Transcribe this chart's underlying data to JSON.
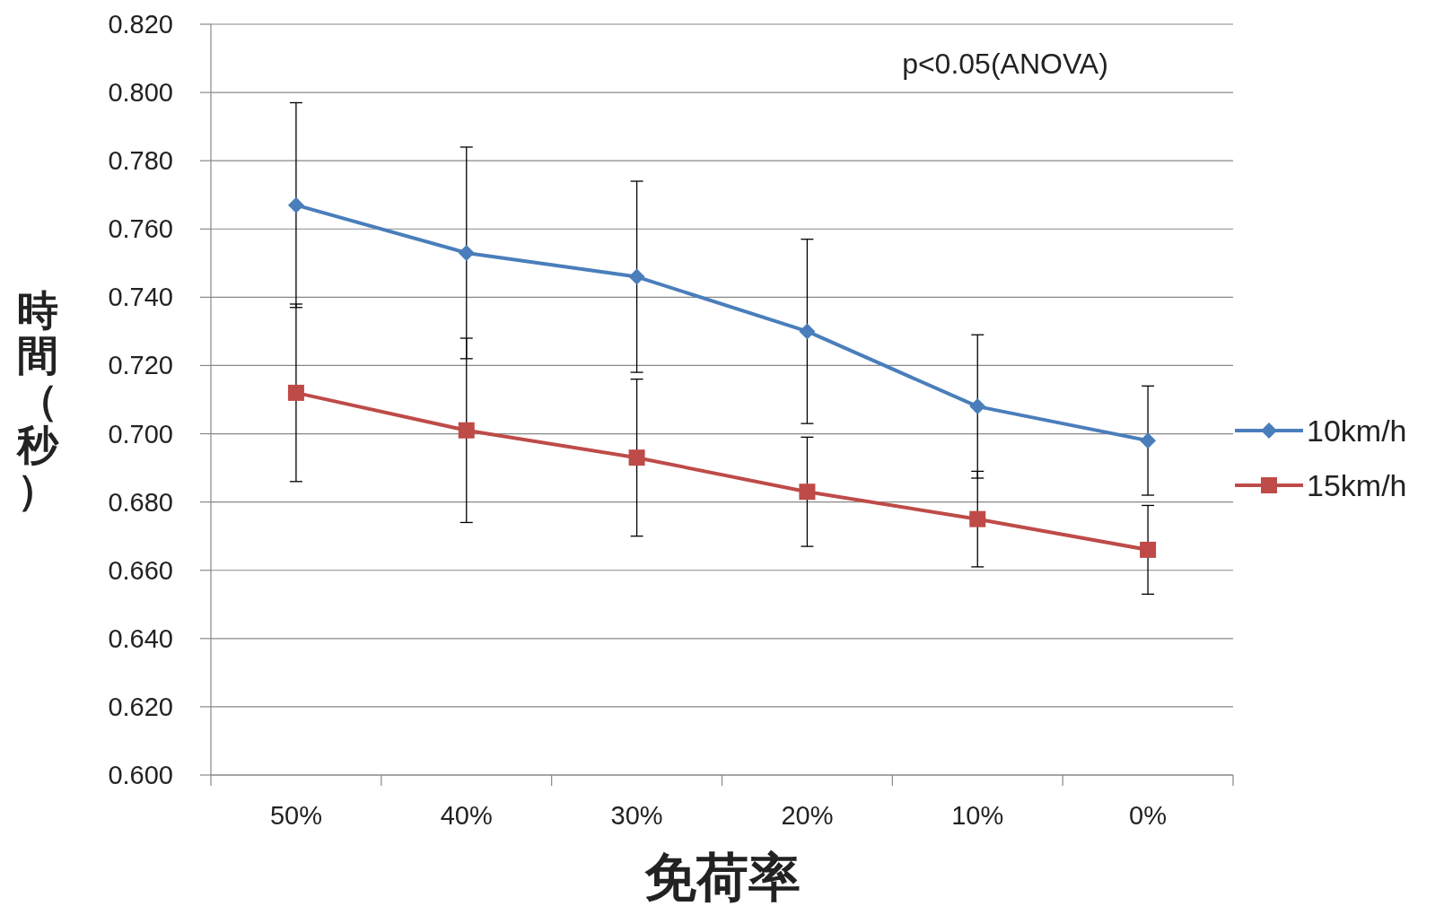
{
  "chart_data": {
    "type": "line",
    "xlabel": "免荷率",
    "ylabel": "時間（秒）",
    "categories": [
      "50%",
      "40%",
      "30%",
      "20%",
      "10%",
      "0%"
    ],
    "series": [
      {
        "name": "10km/h",
        "color": "#4a7ebb",
        "marker": "diamond",
        "values": [
          0.767,
          0.753,
          0.746,
          0.73,
          0.708,
          0.698
        ],
        "errors": [
          0.03,
          0.031,
          0.028,
          0.027,
          0.021,
          0.016
        ]
      },
      {
        "name": "15km/h",
        "color": "#be4b48",
        "marker": "square",
        "values": [
          0.712,
          0.701,
          0.693,
          0.683,
          0.675,
          0.666
        ],
        "errors": [
          0.026,
          0.027,
          0.023,
          0.016,
          0.014,
          0.013
        ]
      }
    ],
    "ylim": [
      0.6,
      0.82
    ],
    "yticks": [
      {
        "value": 0.6,
        "label": "0.600"
      },
      {
        "value": 0.62,
        "label": "0.620"
      },
      {
        "value": 0.64,
        "label": "0.640"
      },
      {
        "value": 0.66,
        "label": "0.660"
      },
      {
        "value": 0.68,
        "label": "0.680"
      },
      {
        "value": 0.7,
        "label": "0.700"
      },
      {
        "value": 0.72,
        "label": "0.720"
      },
      {
        "value": 0.74,
        "label": "0.740"
      },
      {
        "value": 0.76,
        "label": "0.760"
      },
      {
        "value": 0.78,
        "label": "0.780"
      },
      {
        "value": 0.8,
        "label": "0.800"
      },
      {
        "value": 0.82,
        "label": "0.820"
      }
    ],
    "grid": "y",
    "legend": "right",
    "annotations": [
      "p<0.05(ANOVA)"
    ]
  }
}
